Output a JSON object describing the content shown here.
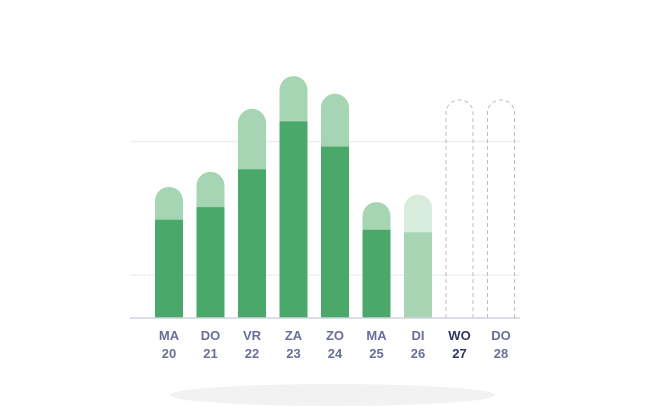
{
  "chart_data": {
    "type": "bar",
    "title": "",
    "xlabel": "",
    "ylabel": "",
    "ylim": [
      0,
      100
    ],
    "grid": true,
    "legend": "none",
    "categories": [
      {
        "day": "MA",
        "date": "20"
      },
      {
        "day": "DO",
        "date": "21"
      },
      {
        "day": "VR",
        "date": "22"
      },
      {
        "day": "ZA",
        "date": "23"
      },
      {
        "day": "ZO",
        "date": "24"
      },
      {
        "day": "MA",
        "date": "25"
      },
      {
        "day": "DI",
        "date": "26"
      },
      {
        "day": "WO",
        "date": "27"
      },
      {
        "day": "DO",
        "date": "28"
      }
    ],
    "series": [
      {
        "values": [
          39,
          44,
          59,
          78,
          68,
          35,
          34,
          null,
          null
        ]
      },
      {
        "values": [
          52,
          58,
          83,
          96,
          89,
          46,
          49,
          null,
          null
        ]
      }
    ],
    "bar_state": [
      "past",
      "past",
      "past",
      "past",
      "past",
      "past",
      "today",
      "future",
      "future"
    ],
    "highlighted_category_index": 7,
    "colors": {
      "bar_dark": "#4aa86a",
      "bar_light": "#a6d5b3",
      "today_dark": "#a8d6b5",
      "today_light": "#d7ecdd",
      "future_outline": "#b9bcc8",
      "gridline": "#e8e8e8",
      "axis": "#cfd3dc",
      "label": "#6a6e9a",
      "label_highlight": "#2f3464"
    }
  }
}
